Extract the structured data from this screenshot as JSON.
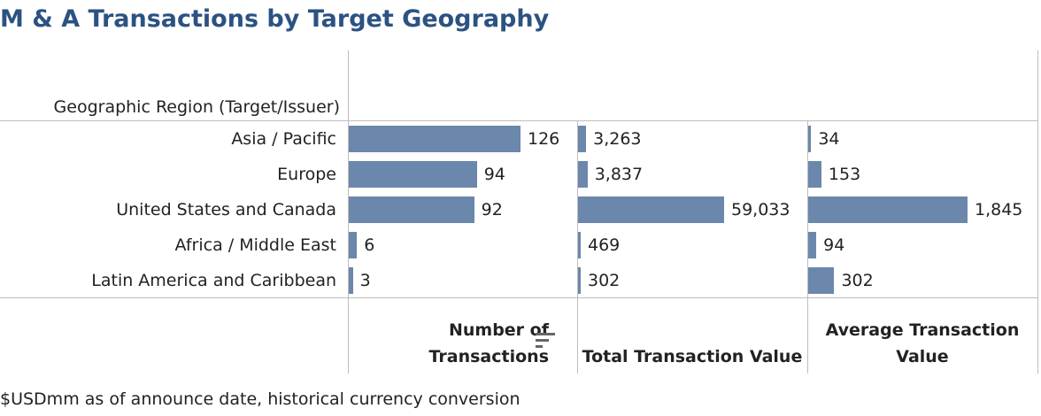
{
  "title": "M & A Transactions by Target Geography",
  "row_header": "Geographic Region (Target/Issuer)",
  "columns": {
    "count_line1": "Number of",
    "count_line2": "Transactions",
    "total": "Total Transaction Value",
    "avg_line1": "Average Transaction",
    "avg_line2": "Value"
  },
  "footnote": "$USDmm as of announce date, historical currency conversion",
  "icons": {
    "sort": "sort-icon"
  },
  "colors": {
    "title": "#2c5282",
    "bar": "#6b87ab"
  },
  "chart_data": {
    "type": "bar",
    "orientation": "horizontal",
    "categories": [
      "Asia / Pacific",
      "Europe",
      "United States and Canada",
      "Africa / Middle East",
      "Latin America and Caribbean"
    ],
    "series": [
      {
        "name": "Number of Transactions",
        "values": [
          126,
          94,
          92,
          6,
          3
        ],
        "labels": [
          "126",
          "94",
          "92",
          "6",
          "3"
        ]
      },
      {
        "name": "Total Transaction Value",
        "values": [
          3263,
          3837,
          59033,
          469,
          302
        ],
        "labels": [
          "3,263",
          "3,837",
          "59,033",
          "469",
          "302"
        ]
      },
      {
        "name": "Average Transaction Value",
        "values": [
          34,
          153,
          1845,
          94,
          302
        ],
        "labels": [
          "34",
          "153",
          "1,845",
          "94",
          "302"
        ]
      }
    ]
  }
}
